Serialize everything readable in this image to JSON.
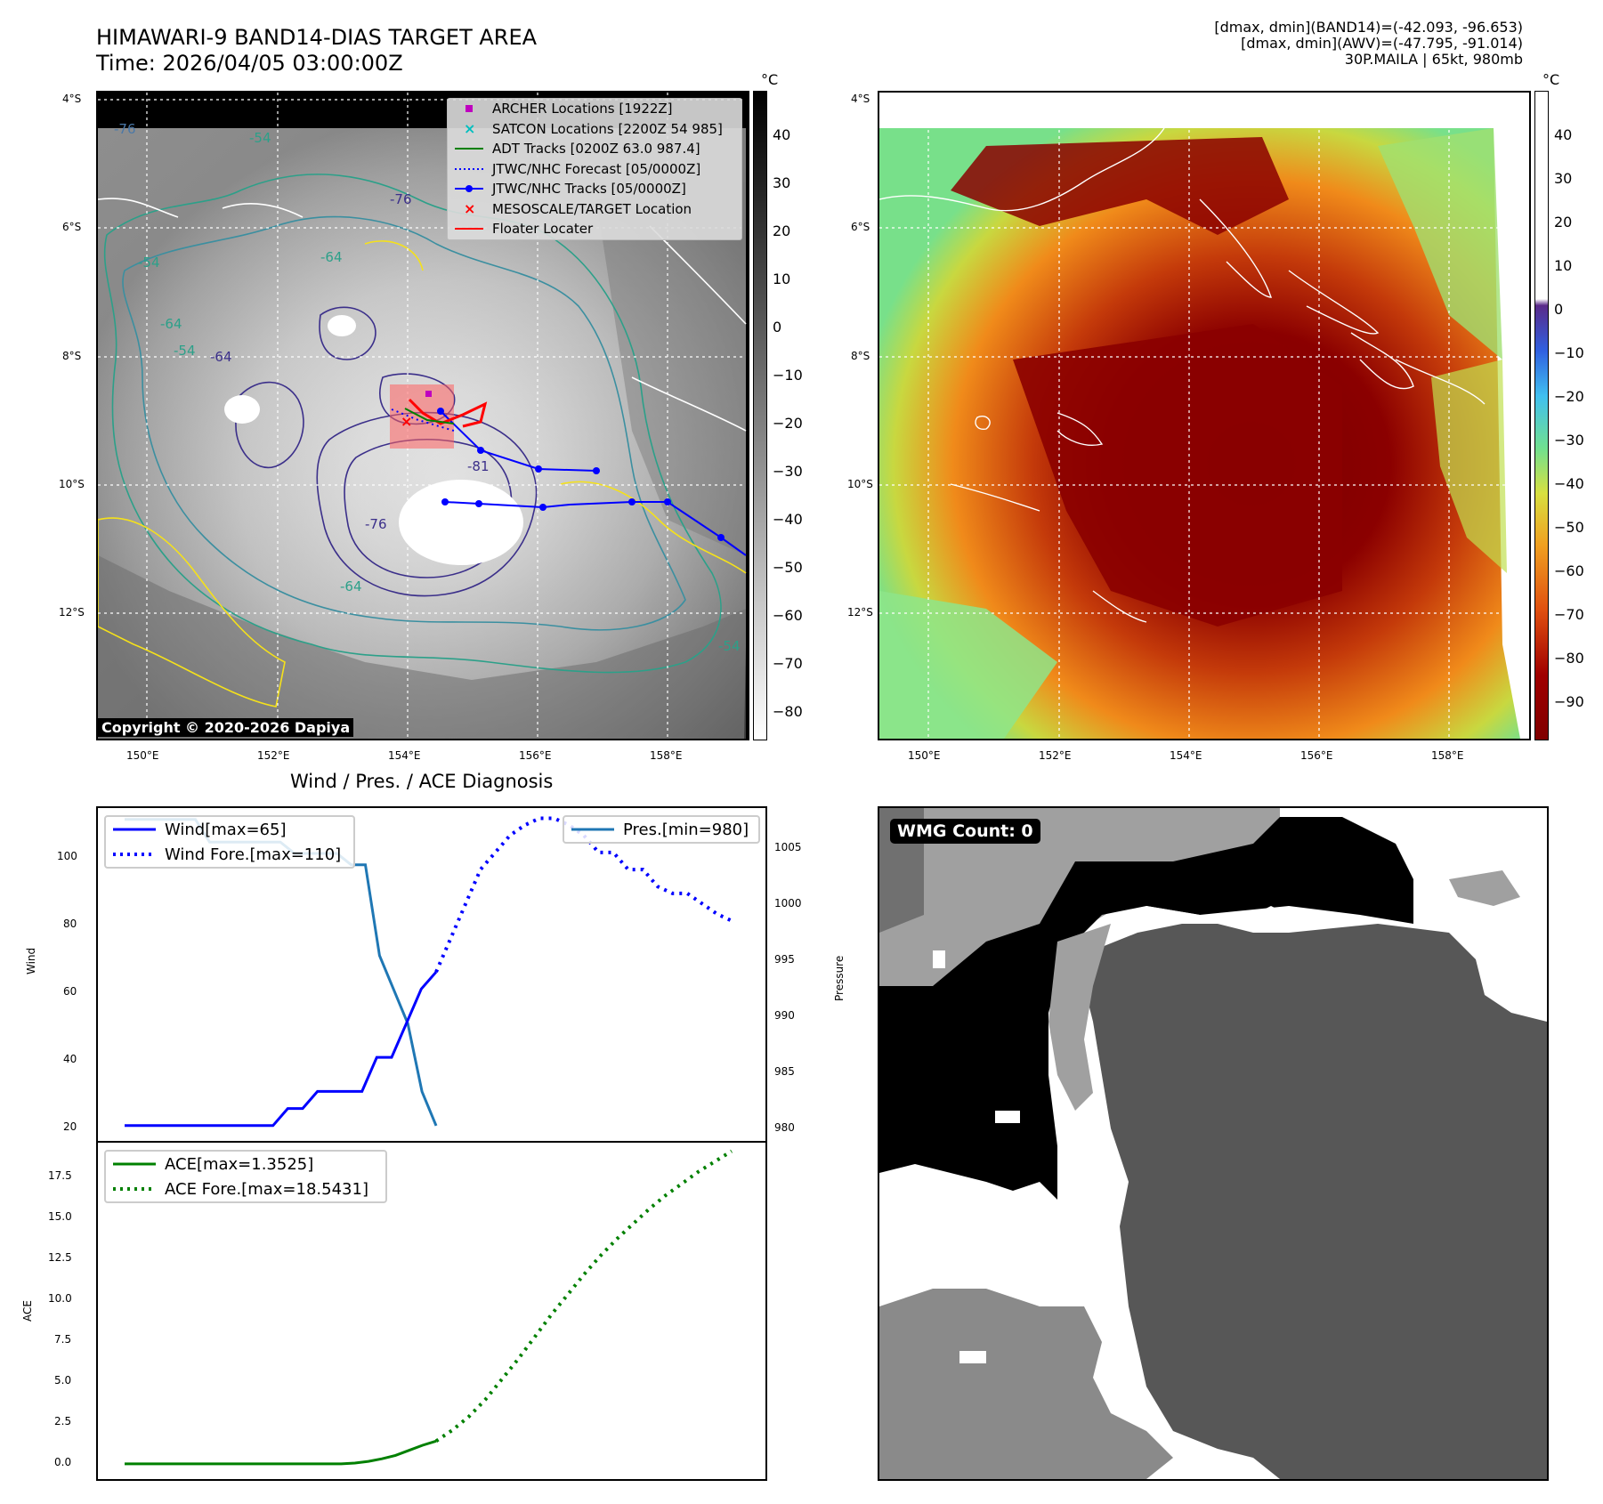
{
  "header": {
    "title_line1": "HIMAWARI-9 BAND14-DIAS TARGET AREA",
    "title_line2": "Time: 2026/04/05 03:00:00Z",
    "info_line1": "[dmax, dmin](BAND14)=(-42.093, -96.653)",
    "info_line2": "[dmax, dmin](AWV)=(-47.795, -91.014)",
    "info_line3": "30P.MAILA | 65kt, 980mb"
  },
  "map_axes": {
    "lat_labels": [
      "4°S",
      "6°S",
      "8°S",
      "10°S",
      "12°S"
    ],
    "lon_labels": [
      "150°E",
      "152°E",
      "154°E",
      "156°E",
      "158°E"
    ]
  },
  "left_map": {
    "contour_labels": [
      "-76",
      "-54",
      "-76",
      "-64",
      "-54",
      "-64",
      "-64",
      "-54",
      "-81",
      "-76",
      "-64",
      "-54"
    ],
    "copyright": "Copyright © 2020-2026 Dapiya",
    "legend": [
      {
        "label": "ARCHER Locations [1922Z]",
        "color": "#bf00bf",
        "symbol": "square"
      },
      {
        "label": "SATCON Locations [2200Z 54 985]",
        "color": "#00bfbf",
        "symbol": "x"
      },
      {
        "label": "ADT Tracks [0200Z 63.0 987.4]",
        "color": "#008000",
        "symbol": "line"
      },
      {
        "label": "JTWC/NHC Forecast [05/0000Z]",
        "color": "#0000ff",
        "symbol": "dotted"
      },
      {
        "label": "JTWC/NHC Tracks [05/0000Z]",
        "color": "#0000ff",
        "symbol": "line-dot"
      },
      {
        "label": "MESOSCALE/TARGET Location",
        "color": "#ff0000",
        "symbol": "x"
      },
      {
        "label": "Floater Locater",
        "color": "#ff0000",
        "symbol": "line"
      }
    ]
  },
  "colorbar_left": {
    "unit": "°C",
    "ticks": [
      "40",
      "30",
      "20",
      "10",
      "0",
      "−10",
      "−20",
      "−30",
      "−40",
      "−50",
      "−60",
      "−70",
      "−80"
    ]
  },
  "colorbar_right": {
    "unit": "°C",
    "ticks": [
      "40",
      "30",
      "20",
      "10",
      "0",
      "−10",
      "−20",
      "−30",
      "−40",
      "−50",
      "−60",
      "−70",
      "−80",
      "−90"
    ]
  },
  "wind_panel": {
    "title": "Wind / Pres. / ACE Diagnosis",
    "ylabel_left": "Wind",
    "ylabel_right": "Pressure",
    "left_ticks": [
      "100",
      "80",
      "60",
      "40",
      "20"
    ],
    "right_ticks": [
      "1005",
      "1000",
      "995",
      "990",
      "985",
      "980"
    ],
    "legend_wind": [
      {
        "label": "Wind[max=65]",
        "style": "solid",
        "color": "#0000ff"
      },
      {
        "label": "Wind Fore.[max=110]",
        "style": "dotted",
        "color": "#0000ff"
      }
    ],
    "legend_pres": "Pres.[min=980]"
  },
  "ace_panel": {
    "ylabel": "ACE",
    "ticks": [
      "17.5",
      "15.0",
      "12.5",
      "10.0",
      "7.5",
      "5.0",
      "2.5",
      "0.0"
    ],
    "legend": [
      {
        "label": "ACE[max=1.3525]",
        "style": "solid",
        "color": "#008000"
      },
      {
        "label": "ACE Fore.[max=18.5431]",
        "style": "dotted",
        "color": "#008000"
      }
    ]
  },
  "wmg_panel": {
    "label": "WMG Count: 0"
  },
  "chart_data": [
    {
      "type": "line",
      "panel": "wind-pressure",
      "ylim_wind": [
        15,
        113
      ],
      "ylim_pressure": [
        978.5,
        1008
      ],
      "series": [
        {
          "name": "Wind[max=65]",
          "axis": "left",
          "style": "solid",
          "color": "#0000ff",
          "y": [
            20,
            20,
            20,
            20,
            20,
            20,
            20,
            20,
            20,
            20,
            20,
            25,
            25,
            30,
            30,
            30,
            30,
            40,
            40,
            50,
            60,
            65
          ]
        },
        {
          "name": "Wind Fore.[max=110]",
          "axis": "left",
          "style": "dotted",
          "color": "#0000ff",
          "y": [
            65,
            75,
            85,
            95,
            100,
            105,
            108,
            110,
            110,
            108,
            105,
            100,
            100,
            95,
            95,
            90,
            88,
            88,
            85,
            82,
            80
          ]
        },
        {
          "name": "Pres.[min=980]",
          "axis": "right",
          "style": "solid",
          "color": "#1f77b4",
          "y": [
            1007,
            1007,
            1007,
            1007,
            1007,
            1007,
            1005,
            1005,
            1005,
            1005,
            1005,
            1005,
            1004,
            1004,
            1004,
            1004,
            1003,
            1003,
            995,
            992,
            989,
            983,
            980
          ]
        }
      ]
    },
    {
      "type": "line",
      "panel": "ace",
      "ylim": [
        -0.9,
        19.0
      ],
      "series": [
        {
          "name": "ACE[max=1.3525]",
          "style": "solid",
          "color": "#008000",
          "y": [
            0,
            0,
            0,
            0,
            0,
            0,
            0,
            0,
            0,
            0,
            0,
            0,
            0,
            0,
            0,
            0,
            0,
            0.05,
            0.15,
            0.3,
            0.5,
            0.8,
            1.1,
            1.35
          ]
        },
        {
          "name": "ACE Fore.[max=18.5431]",
          "style": "dotted",
          "color": "#008000",
          "y": [
            1.35,
            2.0,
            2.8,
            3.8,
            5.0,
            6.2,
            7.5,
            8.8,
            10.0,
            11.2,
            12.3,
            13.3,
            14.2,
            15.1,
            15.9,
            16.6,
            17.3,
            17.9,
            18.5
          ]
        }
      ]
    }
  ]
}
